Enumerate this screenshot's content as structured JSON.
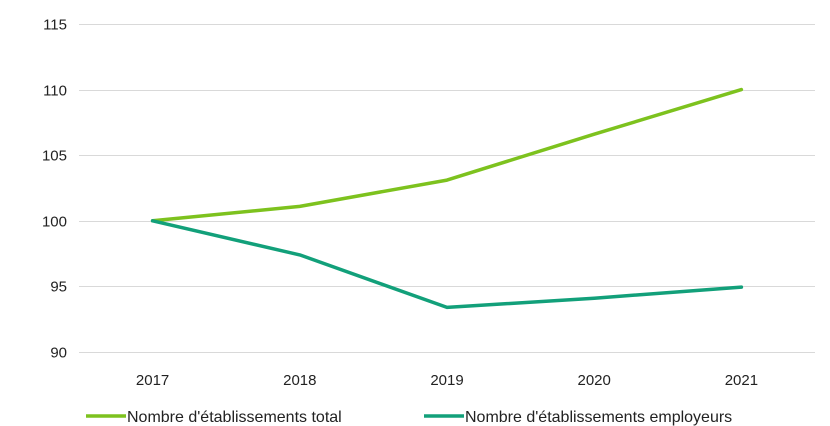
{
  "chart_data": {
    "type": "line",
    "title": "",
    "xlabel": "",
    "ylabel": "",
    "categories": [
      "2017",
      "2018",
      "2019",
      "2020",
      "2021"
    ],
    "ylim": [
      90,
      115
    ],
    "yticks": [
      90,
      95,
      100,
      105,
      110,
      115
    ],
    "grid": true,
    "legend_position": "bottom",
    "series": [
      {
        "name": "Nombre d'établissements total",
        "color": "#7dc21e",
        "values": [
          100,
          101.1,
          103.1,
          106.6,
          110.0
        ]
      },
      {
        "name": "Nombre d'établissements employeurs",
        "color": "#12a07a",
        "values": [
          100,
          97.4,
          93.4,
          94.1,
          94.95
        ]
      }
    ]
  }
}
